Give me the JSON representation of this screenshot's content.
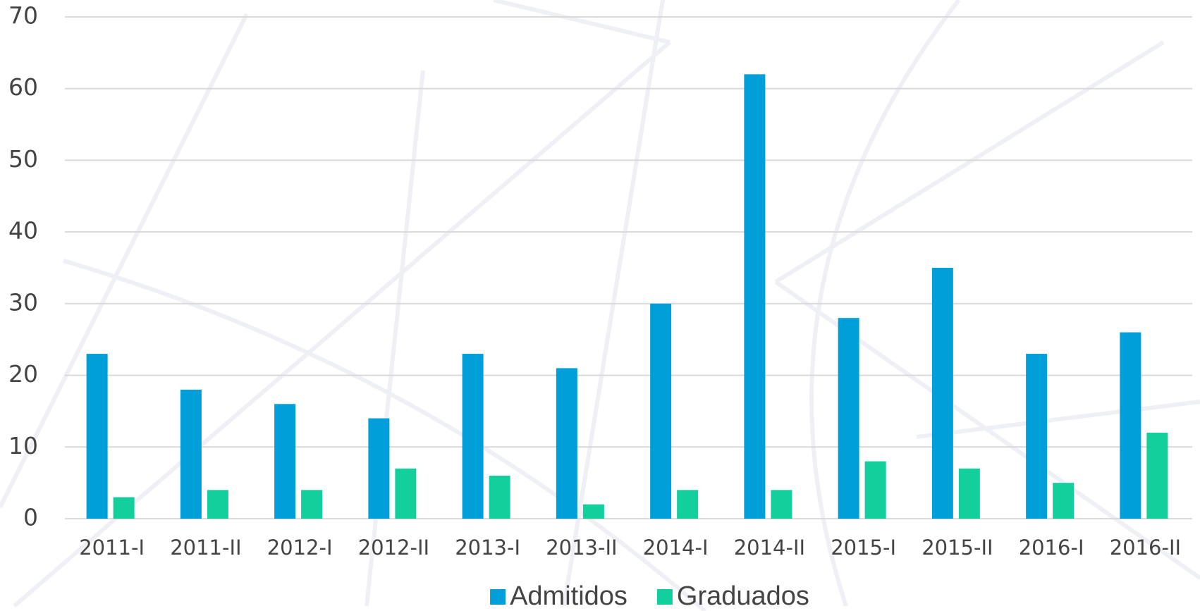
{
  "chart_data": {
    "type": "bar",
    "categories": [
      "2011-I",
      "2011-II",
      "2012-I",
      "2012-II",
      "2013-I",
      "2013-II",
      "2014-I",
      "2014-II",
      "2015-I",
      "2015-II",
      "2016-I",
      "2016-II"
    ],
    "series": [
      {
        "name": "Admitidos",
        "color": "#009fda",
        "values": [
          23,
          18,
          16,
          14,
          23,
          21,
          30,
          62,
          28,
          35,
          23,
          26
        ]
      },
      {
        "name": "Graduados",
        "color": "#12cf9b",
        "values": [
          3,
          4,
          4,
          7,
          6,
          2,
          4,
          4,
          8,
          7,
          5,
          12
        ]
      }
    ],
    "ylim": [
      0,
      70
    ],
    "yticks": [
      0,
      10,
      20,
      30,
      40,
      50,
      60,
      70
    ],
    "grid": true,
    "legend": "bottom"
  }
}
